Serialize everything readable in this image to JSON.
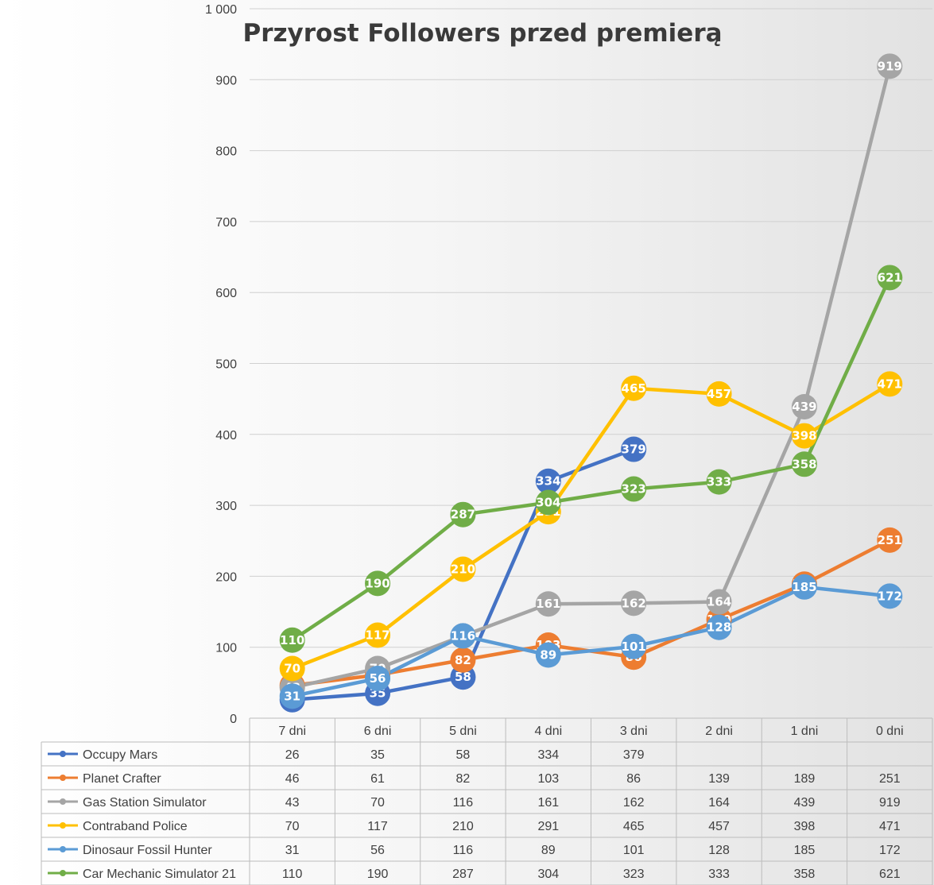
{
  "chart_data": {
    "type": "line",
    "title": "Przyrost Followers przed premierą",
    "xlabel": "",
    "ylabel": "",
    "categories": [
      "7 dni",
      "6 dni",
      "5 dni",
      "4 dni",
      "3 dni",
      "2 dni",
      "1 dni",
      "0 dni"
    ],
    "ylim": [
      0,
      1000
    ],
    "ytick_labels": [
      "0",
      "100",
      "200",
      "300",
      "400",
      "500",
      "600",
      "700",
      "800",
      "900",
      "1 000"
    ],
    "grid": true,
    "legend": "data-table-below",
    "series": [
      {
        "name": "Occupy Mars",
        "color": "#4472C4",
        "values": [
          26,
          35,
          58,
          334,
          379,
          null,
          null,
          null
        ]
      },
      {
        "name": "Planet Crafter",
        "color": "#ED7D31",
        "values": [
          46,
          61,
          82,
          103,
          86,
          139,
          189,
          251
        ]
      },
      {
        "name": "Gas Station Simulator",
        "color": "#A5A5A5",
        "values": [
          43,
          70,
          116,
          161,
          162,
          164,
          439,
          919
        ]
      },
      {
        "name": "Contraband Police",
        "color": "#FFC000",
        "values": [
          70,
          117,
          210,
          291,
          465,
          457,
          398,
          471
        ]
      },
      {
        "name": "Dinosaur Fossil Hunter",
        "color": "#5B9BD5",
        "values": [
          31,
          56,
          116,
          89,
          101,
          128,
          185,
          172
        ]
      },
      {
        "name": "Car Mechanic Simulator 21",
        "color": "#70AD47",
        "values": [
          110,
          190,
          287,
          304,
          323,
          333,
          358,
          621
        ]
      }
    ]
  }
}
